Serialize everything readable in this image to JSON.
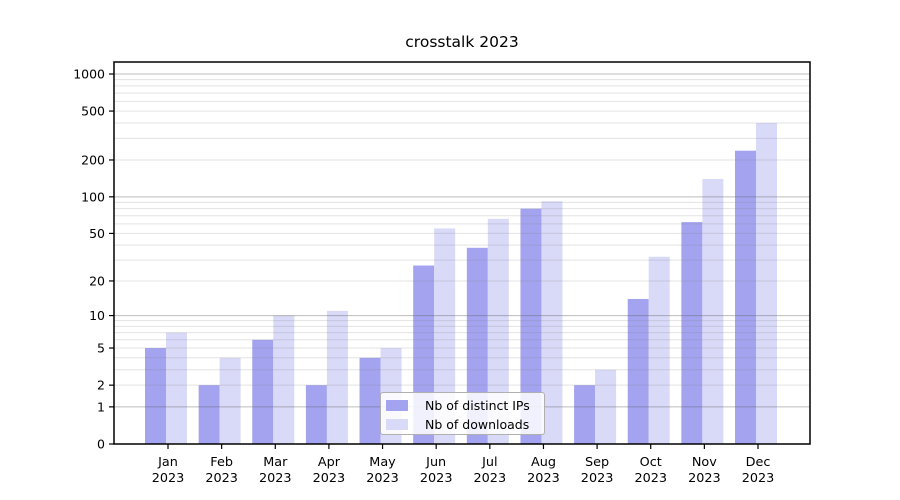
{
  "figure": {
    "title": "crosstalk 2023",
    "background": "#ffffff"
  },
  "chart_data": {
    "type": "bar",
    "title": "crosstalk 2023",
    "categories": [
      "Jan",
      "Feb",
      "Mar",
      "Apr",
      "May",
      "Jun",
      "Jul",
      "Aug",
      "Sep",
      "Oct",
      "Nov",
      "Dec"
    ],
    "category_year": "2023",
    "series": [
      {
        "name": "Nb of distinct IPs",
        "color": "#a3a3f0",
        "values": [
          5,
          2,
          6,
          2,
          4,
          27,
          38,
          80,
          2,
          14,
          62,
          238
        ]
      },
      {
        "name": "Nb of downloads",
        "color": "#d9d9f8",
        "values": [
          7,
          4,
          10,
          11,
          5,
          55,
          66,
          92,
          3,
          32,
          140,
          400
        ]
      }
    ],
    "xlabel": "",
    "ylabel": "",
    "yscale": "log1p",
    "ylim": [
      0,
      1000
    ],
    "yticks": [
      0,
      1,
      2,
      5,
      10,
      20,
      50,
      100,
      200,
      500,
      1000
    ],
    "grid": "horizontal",
    "grid_minor_decades": [
      1,
      10,
      100
    ],
    "legend_position": "inside-lower-center",
    "legend_frame": "rounded semi-transparent white"
  },
  "colors": {
    "bar_distinct_ips": "#a3a3f0",
    "bar_downloads": "#d9d9f8",
    "axis": "#000000",
    "grid_major": "#bcbcbc",
    "grid_minor": "#e3e3e3",
    "text": "#000000"
  }
}
